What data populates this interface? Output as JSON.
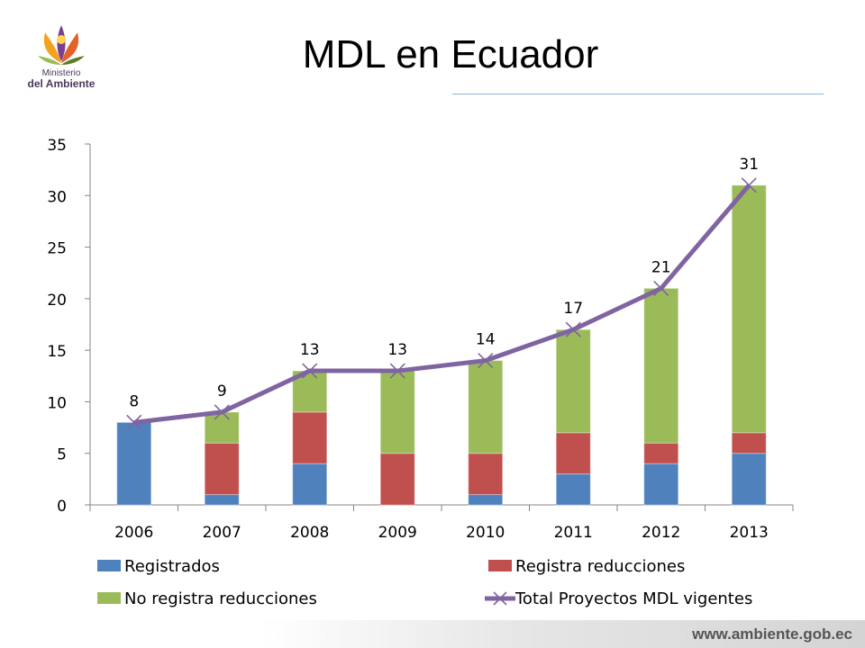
{
  "slide": {
    "title": "MDL en Ecuador",
    "footer_url": "www.ambiente.gob.ec",
    "logo": {
      "line1": "Ministerio",
      "line2": "del Ambiente"
    }
  },
  "colors": {
    "registrados": "#4f81bd",
    "registra_reducciones": "#c0504d",
    "no_registra_reducciones": "#9bbb59",
    "total": "#8064a2"
  },
  "chart_data": {
    "type": "bar",
    "stacked": true,
    "categories": [
      "2006",
      "2007",
      "2008",
      "2009",
      "2010",
      "2011",
      "2012",
      "2013"
    ],
    "series": [
      {
        "name": "Registrados",
        "type": "bar",
        "values": [
          8,
          1,
          4,
          0,
          1,
          3,
          4,
          5
        ]
      },
      {
        "name": "Registra reducciones",
        "type": "bar",
        "values": [
          0,
          5,
          5,
          5,
          4,
          4,
          2,
          2
        ]
      },
      {
        "name": "No registra reducciones",
        "type": "bar",
        "values": [
          0,
          3,
          4,
          8,
          9,
          10,
          15,
          24
        ]
      },
      {
        "name": "Total Proyectos MDL vigentes",
        "type": "line",
        "values": [
          8,
          9,
          13,
          13,
          14,
          17,
          21,
          31
        ]
      }
    ],
    "data_labels": [
      "8",
      "9",
      "13",
      "13",
      "14",
      "17",
      "21",
      "31"
    ],
    "yticks": [
      "0",
      "5",
      "10",
      "15",
      "20",
      "25",
      "30",
      "35"
    ],
    "ylim": [
      0,
      35
    ],
    "title": "",
    "xlabel": "",
    "ylabel": "",
    "grid": false,
    "legend_position": "bottom"
  }
}
